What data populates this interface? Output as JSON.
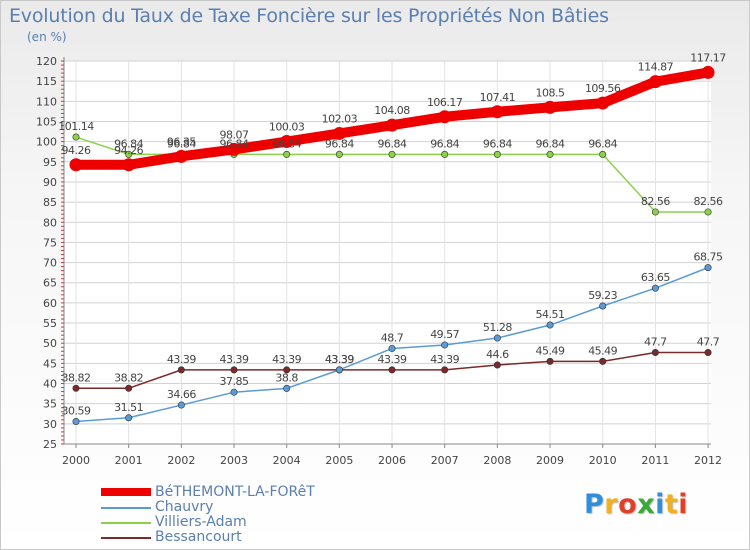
{
  "title": "Evolution du Taux de Taxe Foncière sur les Propriétés Non Bâties",
  "unit": "(en %)",
  "logo": {
    "letters": [
      "P",
      "r",
      "o",
      "x",
      "i",
      "t",
      "i"
    ],
    "colors": [
      "#2f8fd8",
      "#f0b020",
      "#e0402a",
      "#3aa83a",
      "#2f8fd8",
      "#f0b020",
      "#e0402a"
    ]
  },
  "chart_data": {
    "type": "line",
    "title": "Evolution du Taux de Taxe Foncière sur les Propriétés Non Bâties",
    "ylabel": "(en %)",
    "xlabel": "",
    "ylim": [
      25,
      120
    ],
    "yticks": [
      25,
      30,
      35,
      40,
      45,
      50,
      55,
      60,
      65,
      70,
      75,
      80,
      85,
      90,
      95,
      100,
      105,
      110,
      115,
      120
    ],
    "categories": [
      "2000",
      "2001",
      "2002",
      "2003",
      "2004",
      "2005",
      "2006",
      "2007",
      "2008",
      "2009",
      "2010",
      "2011",
      "2012"
    ],
    "legend_position": "bottom-left",
    "series": [
      {
        "name": "BéTHEMONT-LA-FORêT",
        "color": "#ee0000",
        "values": [
          94.26,
          94.26,
          96.35,
          98.07,
          100.03,
          102.03,
          104.08,
          106.17,
          107.41,
          108.5,
          109.56,
          114.87,
          117.17
        ],
        "labels": [
          "94.26",
          "94.26",
          "96.35",
          "98.07",
          "100.03",
          "102.03",
          "104.08",
          "106.17",
          "107.41",
          "108.5",
          "109.56",
          "114.87",
          "117.17"
        ]
      },
      {
        "name": "Chauvry",
        "color": "#5b9bd5",
        "values": [
          30.59,
          31.51,
          34.66,
          37.85,
          38.8,
          43.39,
          48.7,
          49.57,
          51.28,
          54.51,
          59.23,
          63.65,
          68.75
        ],
        "labels": [
          "30.59",
          "31.51",
          "34.66",
          "37.85",
          "38.8",
          "43.39",
          "48.7",
          "49.57",
          "51.28",
          "54.51",
          "59.23",
          "63.65",
          "68.75"
        ]
      },
      {
        "name": "Villiers-Adam",
        "color": "#8cd14a",
        "values": [
          101.14,
          96.84,
          96.84,
          96.84,
          96.84,
          96.84,
          96.84,
          96.84,
          96.84,
          96.84,
          96.84,
          82.56,
          82.56
        ],
        "labels": [
          "101.14",
          "96.84",
          "96.84",
          "96.84",
          "96.84",
          "96.84",
          "96.84",
          "96.84",
          "96.84",
          "96.84",
          "96.84",
          "82.56",
          "82.56"
        ]
      },
      {
        "name": "Bessancourt",
        "color": "#7a2a2a",
        "values": [
          38.82,
          38.82,
          43.39,
          43.39,
          43.39,
          43.39,
          43.39,
          43.39,
          44.6,
          45.49,
          45.49,
          47.7,
          47.7
        ],
        "labels": [
          "38.82",
          "38.82",
          "43.39",
          "43.39",
          "43.39",
          "43.39",
          "43.39",
          "43.39",
          "44.6",
          "45.49",
          "45.49",
          "47.7",
          "47.7"
        ]
      }
    ]
  }
}
